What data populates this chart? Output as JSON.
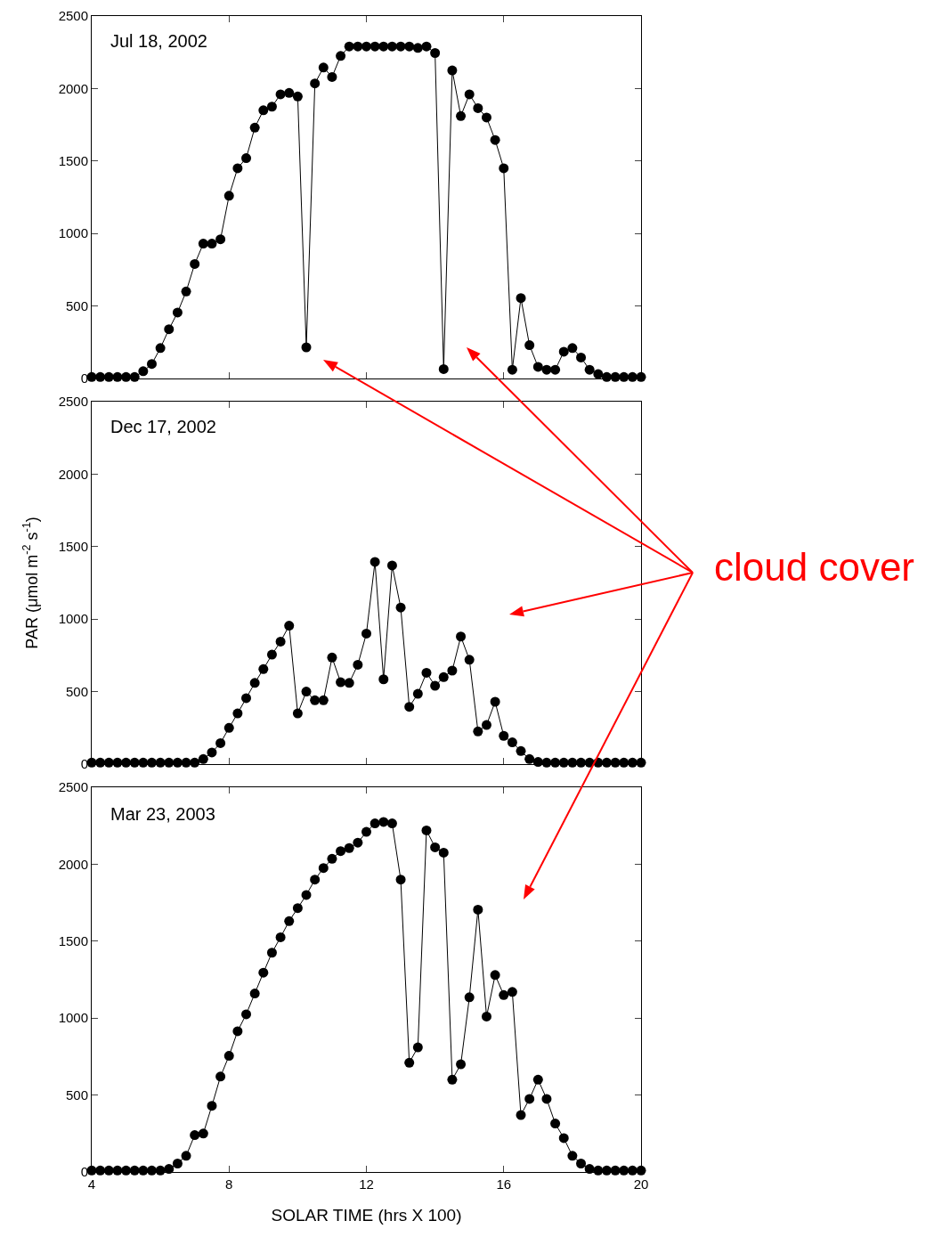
{
  "chart_data": [
    {
      "type": "line",
      "annotations": [
        "Jul 18, 2002"
      ],
      "x": [
        4,
        4.25,
        4.5,
        4.75,
        5,
        5.25,
        5.5,
        5.75,
        6,
        6.25,
        6.5,
        6.75,
        7,
        7.25,
        7.5,
        7.75,
        8,
        8.25,
        8.5,
        8.75,
        9,
        9.25,
        9.5,
        9.75,
        10,
        10.25,
        10.5,
        10.75,
        11,
        11.25,
        11.5,
        11.75,
        12,
        12.25,
        12.5,
        12.75,
        13,
        13.25,
        13.5,
        13.75,
        14,
        14.25,
        14.5,
        14.75,
        15,
        15.25,
        15.5,
        15.75,
        16,
        16.25,
        16.5,
        16.75,
        17,
        17.25,
        17.5,
        17.75,
        18,
        18.25,
        18.5,
        18.75,
        19,
        19.25,
        19.5,
        19.75,
        20
      ],
      "series": [
        {
          "color": "#000000",
          "values": [
            10,
            10,
            10,
            10,
            10,
            10,
            50,
            100,
            210,
            340,
            455,
            600,
            790,
            930,
            930,
            960,
            1260,
            1450,
            1520,
            1730,
            1850,
            1875,
            1960,
            1970,
            1945,
            215,
            2035,
            2145,
            2080,
            2225,
            2290,
            2290,
            2290,
            2290,
            2290,
            2290,
            2290,
            2290,
            2280,
            2290,
            2245,
            65,
            2125,
            1810,
            1960,
            1865,
            1800,
            1645,
            1450,
            60,
            555,
            230,
            80,
            60,
            60,
            185,
            210,
            145,
            60,
            30,
            10,
            10,
            10,
            10,
            10
          ]
        }
      ],
      "xlim": [
        4,
        20
      ],
      "xticks": [
        4,
        8,
        12,
        16,
        20
      ],
      "ylim": [
        0,
        2500
      ],
      "yticks": [
        0,
        500,
        1000,
        1500,
        2000,
        2500
      ],
      "tick_labels": "y",
      "marker": "circle",
      "line_style": "solid"
    },
    {
      "type": "line",
      "ylabel": "PAR (μmol m$^{-2}$ s$^{-1}$)",
      "annotations": [
        "Dec 17, 2002",
        "cloud cover"
      ],
      "x": [
        4,
        4.25,
        4.5,
        4.75,
        5,
        5.25,
        5.5,
        5.75,
        6,
        6.25,
        6.5,
        6.75,
        7,
        7.25,
        7.5,
        7.75,
        8,
        8.25,
        8.5,
        8.75,
        9,
        9.25,
        9.5,
        9.75,
        10,
        10.25,
        10.5,
        10.75,
        11,
        11.25,
        11.5,
        11.75,
        12,
        12.25,
        12.5,
        12.75,
        13,
        13.25,
        13.5,
        13.75,
        14,
        14.25,
        14.5,
        14.75,
        15,
        15.25,
        15.5,
        15.75,
        16,
        16.25,
        16.5,
        16.75,
        17,
        17.25,
        17.5,
        17.75,
        18,
        18.25,
        18.5,
        18.75,
        19,
        19.25,
        19.5,
        19.75,
        20
      ],
      "series": [
        {
          "color": "#000000",
          "values": [
            10,
            10,
            10,
            10,
            10,
            10,
            10,
            10,
            10,
            10,
            10,
            10,
            10,
            35,
            80,
            145,
            250,
            350,
            455,
            560,
            655,
            755,
            845,
            955,
            350,
            500,
            440,
            440,
            735,
            565,
            560,
            685,
            900,
            1395,
            585,
            1370,
            1080,
            395,
            485,
            630,
            540,
            600,
            645,
            880,
            720,
            225,
            270,
            430,
            195,
            150,
            90,
            35,
            15,
            10,
            10,
            10,
            10,
            10,
            10,
            10,
            10,
            10,
            10,
            10,
            10
          ]
        }
      ],
      "xlim": [
        4,
        20
      ],
      "xticks": [
        4,
        8,
        12,
        16,
        20
      ],
      "ylim": [
        0,
        2500
      ],
      "yticks": [
        0,
        500,
        1000,
        1500,
        2000,
        2500
      ],
      "tick_labels": "y",
      "marker": "circle",
      "line_style": "solid"
    },
    {
      "type": "line",
      "xlabel": "SOLAR TIME (hrs X 100)",
      "annotations": [
        "Mar 23, 2003"
      ],
      "x": [
        4,
        4.25,
        4.5,
        4.75,
        5,
        5.25,
        5.5,
        5.75,
        6,
        6.25,
        6.5,
        6.75,
        7,
        7.25,
        7.5,
        7.75,
        8,
        8.25,
        8.5,
        8.75,
        9,
        9.25,
        9.5,
        9.75,
        10,
        10.25,
        10.5,
        10.75,
        11,
        11.25,
        11.5,
        11.75,
        12,
        12.25,
        12.5,
        12.75,
        13,
        13.25,
        13.5,
        13.75,
        14,
        14.25,
        14.5,
        14.75,
        15,
        15.25,
        15.5,
        15.75,
        16,
        16.25,
        16.5,
        16.75,
        17,
        17.25,
        17.5,
        17.75,
        18,
        18.25,
        18.5,
        18.75,
        19,
        19.25,
        19.5,
        19.75,
        20
      ],
      "series": [
        {
          "color": "#000000",
          "values": [
            10,
            10,
            10,
            10,
            10,
            10,
            10,
            10,
            10,
            20,
            55,
            105,
            240,
            250,
            430,
            620,
            755,
            915,
            1025,
            1160,
            1295,
            1425,
            1525,
            1630,
            1715,
            1800,
            1900,
            1975,
            2035,
            2085,
            2105,
            2140,
            2210,
            2265,
            2275,
            2265,
            1900,
            710,
            810,
            2220,
            2110,
            2075,
            600,
            700,
            1135,
            1705,
            1010,
            1280,
            1150,
            1170,
            370,
            475,
            600,
            475,
            315,
            220,
            105,
            55,
            20,
            10,
            10,
            10,
            10,
            10,
            10
          ]
        }
      ],
      "xlim": [
        4,
        20
      ],
      "xticks": [
        4,
        8,
        12,
        16,
        20
      ],
      "ylim": [
        0,
        2500
      ],
      "yticks": [
        0,
        500,
        1000,
        1500,
        2000,
        2500
      ],
      "marker": "circle",
      "line_style": "solid"
    }
  ]
}
